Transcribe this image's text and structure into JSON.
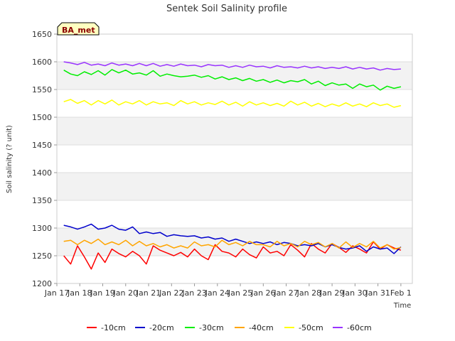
{
  "chart_data": {
    "type": "line",
    "title": "Sentek Soil Salinity profile",
    "xlabel": "Time",
    "ylabel": "Soil salinity (? unit)",
    "badge": "BA_met",
    "ylim": [
      1200,
      1650
    ],
    "yticks": [
      1200,
      1250,
      1300,
      1350,
      1400,
      1450,
      1500,
      1550,
      1600,
      1650
    ],
    "xlim": [
      0,
      15.5
    ],
    "xtick_labels": [
      "Jan 17",
      "Jan 18",
      "Jan 19",
      "Jan 20",
      "Jan 21",
      "Jan 22",
      "Jan 23",
      "Jan 24",
      "Jan 25",
      "Jan 26",
      "Jan 27",
      "Jan 28",
      "Jan 29",
      "Jan 30",
      "Jan 31",
      "Feb 1"
    ],
    "grid": "horizontal",
    "legend_position": "bottom",
    "x": [
      0.3,
      0.6,
      0.9,
      1.2,
      1.5,
      1.8,
      2.1,
      2.4,
      2.7,
      3.0,
      3.3,
      3.6,
      3.9,
      4.2,
      4.5,
      4.8,
      5.1,
      5.4,
      5.7,
      6.0,
      6.3,
      6.6,
      6.9,
      7.2,
      7.5,
      7.8,
      8.1,
      8.4,
      8.7,
      9.0,
      9.3,
      9.6,
      9.9,
      10.2,
      10.5,
      10.8,
      11.1,
      11.4,
      11.7,
      12.0,
      12.3,
      12.6,
      12.9,
      13.2,
      13.5,
      13.8,
      14.1,
      14.4,
      14.7,
      15.0
    ],
    "series": [
      {
        "name": "-10cm",
        "color": "#ff0000",
        "values": [
          1250,
          1235,
          1268,
          1248,
          1226,
          1255,
          1238,
          1262,
          1254,
          1248,
          1258,
          1250,
          1235,
          1268,
          1260,
          1255,
          1250,
          1256,
          1248,
          1262,
          1250,
          1243,
          1270,
          1258,
          1255,
          1248,
          1262,
          1252,
          1246,
          1266,
          1255,
          1258,
          1250,
          1270,
          1260,
          1248,
          1272,
          1262,
          1255,
          1272,
          1265,
          1256,
          1268,
          1262,
          1255,
          1275,
          1262,
          1270,
          1264,
          1260
        ]
      },
      {
        "name": "-20cm",
        "color": "#0000cc",
        "values": [
          1305,
          1302,
          1298,
          1302,
          1307,
          1298,
          1300,
          1305,
          1298,
          1296,
          1302,
          1290,
          1293,
          1290,
          1292,
          1285,
          1288,
          1286,
          1285,
          1286,
          1282,
          1284,
          1280,
          1282,
          1276,
          1280,
          1276,
          1272,
          1275,
          1272,
          1275,
          1270,
          1274,
          1272,
          1268,
          1270,
          1268,
          1272,
          1266,
          1270,
          1265,
          1262,
          1264,
          1268,
          1258,
          1266,
          1262,
          1264,
          1254,
          1266
        ]
      },
      {
        "name": "-30cm",
        "color": "#00ee00",
        "values": [
          1585,
          1578,
          1575,
          1582,
          1577,
          1584,
          1576,
          1586,
          1580,
          1585,
          1578,
          1580,
          1576,
          1584,
          1574,
          1578,
          1575,
          1573,
          1574,
          1576,
          1572,
          1575,
          1569,
          1573,
          1568,
          1571,
          1566,
          1570,
          1565,
          1568,
          1563,
          1567,
          1562,
          1566,
          1564,
          1568,
          1560,
          1565,
          1557,
          1562,
          1558,
          1560,
          1552,
          1560,
          1555,
          1558,
          1549,
          1556,
          1552,
          1555
        ]
      },
      {
        "name": "-40cm",
        "color": "#ffa500",
        "values": [
          1276,
          1278,
          1270,
          1278,
          1272,
          1280,
          1270,
          1275,
          1270,
          1278,
          1268,
          1276,
          1268,
          1272,
          1266,
          1270,
          1264,
          1268,
          1264,
          1275,
          1268,
          1270,
          1266,
          1278,
          1270,
          1274,
          1268,
          1276,
          1270,
          1270,
          1266,
          1276,
          1268,
          1272,
          1266,
          1276,
          1270,
          1274,
          1266,
          1272,
          1264,
          1275,
          1265,
          1272,
          1266,
          1276,
          1264,
          1270,
          1262,
          1265
        ]
      },
      {
        "name": "-50cm",
        "color": "#ffff00",
        "values": [
          1528,
          1532,
          1525,
          1530,
          1522,
          1530,
          1524,
          1531,
          1522,
          1528,
          1524,
          1530,
          1522,
          1528,
          1524,
          1526,
          1521,
          1530,
          1524,
          1528,
          1522,
          1526,
          1523,
          1529,
          1522,
          1527,
          1520,
          1528,
          1522,
          1526,
          1521,
          1525,
          1520,
          1529,
          1522,
          1527,
          1520,
          1525,
          1519,
          1524,
          1520,
          1526,
          1520,
          1524,
          1519,
          1526,
          1521,
          1524,
          1518,
          1521
        ]
      },
      {
        "name": "-60cm",
        "color": "#9933ff",
        "values": [
          1600,
          1598,
          1595,
          1599,
          1594,
          1596,
          1593,
          1598,
          1594,
          1596,
          1593,
          1597,
          1593,
          1597,
          1592,
          1595,
          1592,
          1596,
          1593,
          1594,
          1591,
          1595,
          1593,
          1594,
          1590,
          1593,
          1590,
          1594,
          1591,
          1592,
          1589,
          1593,
          1590,
          1591,
          1589,
          1592,
          1589,
          1591,
          1588,
          1590,
          1588,
          1591,
          1587,
          1590,
          1587,
          1589,
          1585,
          1588,
          1586,
          1587
        ]
      }
    ]
  }
}
